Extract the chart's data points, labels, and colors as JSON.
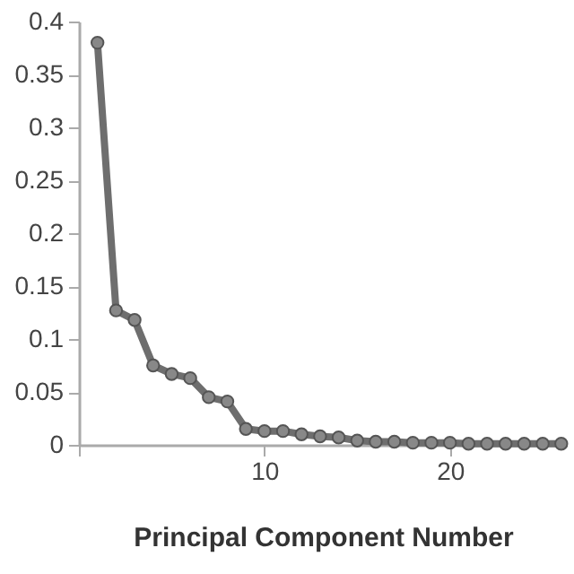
{
  "chart_data": {
    "type": "line",
    "xlabel": "Principal Component Number",
    "x": [
      1,
      2,
      3,
      4,
      5,
      6,
      7,
      8,
      9,
      10,
      11,
      12,
      13,
      14,
      15,
      16,
      17,
      18,
      19,
      20,
      21,
      22,
      23,
      24,
      25,
      26
    ],
    "series": [
      {
        "color": "#6e6e6e",
        "values": [
          0.38,
          0.127,
          0.118,
          0.075,
          0.067,
          0.063,
          0.045,
          0.041,
          0.015,
          0.013,
          0.013,
          0.01,
          0.008,
          0.007,
          0.004,
          0.003,
          0.003,
          0.002,
          0.002,
          0.002,
          0.001,
          0.001,
          0.001,
          0.001,
          0.001,
          0.001
        ]
      }
    ],
    "xlim": [
      0,
      26.3
    ],
    "xticks": [
      {
        "value": 0,
        "label": null
      },
      10,
      20
    ],
    "ylim": [
      0,
      0.4
    ],
    "yticks": [
      0,
      0.05,
      0.1,
      0.15,
      0.2,
      0.25,
      0.3,
      0.35,
      0.4
    ],
    "grid": false,
    "marker": "circle",
    "line_style": "solid"
  }
}
